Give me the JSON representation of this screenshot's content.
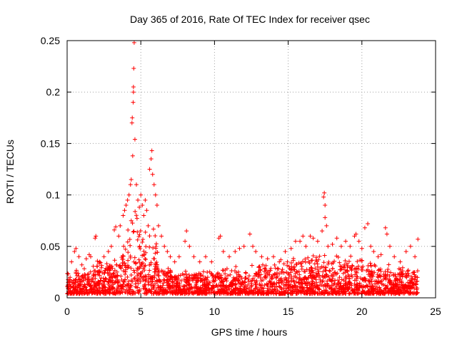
{
  "chart_data": {
    "type": "scatter",
    "title": "Day 365 of 2016, Rate Of TEC Index for receiver qsec",
    "xlabel": "GPS time / hours",
    "ylabel": "ROTI / TECUs",
    "xlim": [
      0,
      25
    ],
    "ylim": [
      0,
      0.25
    ],
    "xticks": [
      0,
      5,
      10,
      15,
      20,
      25
    ],
    "yticks": [
      0,
      0.05,
      0.1,
      0.15,
      0.2,
      0.25
    ],
    "xtick_labels": [
      "0",
      "5",
      "10",
      "15",
      "20",
      "25"
    ],
    "ytick_labels": [
      "0",
      "0.05",
      "0.1",
      "0.15",
      "0.2",
      "0.25"
    ],
    "grid": true,
    "marker": "+",
    "color": "#ff0000",
    "series": [
      {
        "name": "ROTI",
        "points": [
          [
            0.3,
            0.035
          ],
          [
            0.5,
            0.045
          ],
          [
            0.6,
            0.048
          ],
          [
            0.8,
            0.04
          ],
          [
            1.0,
            0.032
          ],
          [
            1.3,
            0.038
          ],
          [
            1.5,
            0.042
          ],
          [
            1.6,
            0.04
          ],
          [
            1.9,
            0.058
          ],
          [
            1.95,
            0.06
          ],
          [
            2.2,
            0.035
          ],
          [
            2.5,
            0.04
          ],
          [
            2.8,
            0.045
          ],
          [
            3.0,
            0.05
          ],
          [
            3.2,
            0.066
          ],
          [
            3.3,
            0.069
          ],
          [
            3.5,
            0.06
          ],
          [
            3.6,
            0.07
          ],
          [
            3.8,
            0.08
          ],
          [
            3.9,
            0.085
          ],
          [
            4.0,
            0.09
          ],
          [
            4.1,
            0.095
          ],
          [
            4.2,
            0.1
          ],
          [
            4.3,
            0.11
          ],
          [
            4.35,
            0.115
          ],
          [
            4.4,
            0.17
          ],
          [
            4.42,
            0.175
          ],
          [
            4.45,
            0.138
          ],
          [
            4.48,
            0.19
          ],
          [
            4.5,
            0.2
          ],
          [
            4.5,
            0.205
          ],
          [
            4.52,
            0.223
          ],
          [
            4.55,
            0.248
          ],
          [
            4.6,
            0.154
          ],
          [
            4.7,
            0.11
          ],
          [
            4.8,
            0.095
          ],
          [
            4.9,
            0.088
          ],
          [
            5.0,
            0.1
          ],
          [
            5.1,
            0.09
          ],
          [
            5.2,
            0.08
          ],
          [
            5.3,
            0.095
          ],
          [
            5.4,
            0.085
          ],
          [
            5.5,
            0.07
          ],
          [
            5.6,
            0.125
          ],
          [
            5.7,
            0.135
          ],
          [
            5.75,
            0.143
          ],
          [
            5.8,
            0.12
          ],
          [
            5.9,
            0.11
          ],
          [
            6.0,
            0.1
          ],
          [
            6.1,
            0.09
          ],
          [
            6.2,
            0.07
          ],
          [
            6.4,
            0.06
          ],
          [
            6.6,
            0.05
          ],
          [
            6.8,
            0.045
          ],
          [
            7.0,
            0.04
          ],
          [
            7.3,
            0.035
          ],
          [
            7.6,
            0.04
          ],
          [
            8.0,
            0.055
          ],
          [
            8.1,
            0.065
          ],
          [
            8.3,
            0.05
          ],
          [
            8.6,
            0.04
          ],
          [
            9.0,
            0.035
          ],
          [
            9.4,
            0.04
          ],
          [
            9.8,
            0.035
          ],
          [
            10.3,
            0.058
          ],
          [
            10.4,
            0.06
          ],
          [
            10.6,
            0.045
          ],
          [
            11.0,
            0.04
          ],
          [
            11.4,
            0.045
          ],
          [
            11.7,
            0.048
          ],
          [
            12.0,
            0.05
          ],
          [
            12.4,
            0.062
          ],
          [
            12.6,
            0.05
          ],
          [
            12.8,
            0.045
          ],
          [
            13.2,
            0.04
          ],
          [
            13.6,
            0.038
          ],
          [
            14.0,
            0.04
          ],
          [
            14.4,
            0.035
          ],
          [
            14.8,
            0.045
          ],
          [
            15.2,
            0.048
          ],
          [
            15.5,
            0.055
          ],
          [
            15.8,
            0.055
          ],
          [
            16.0,
            0.06
          ],
          [
            16.2,
            0.05
          ],
          [
            16.5,
            0.06
          ],
          [
            16.7,
            0.058
          ],
          [
            17.0,
            0.055
          ],
          [
            17.3,
            0.065
          ],
          [
            17.4,
            0.098
          ],
          [
            17.45,
            0.102
          ],
          [
            17.5,
            0.09
          ],
          [
            17.5,
            0.078
          ],
          [
            17.6,
            0.07
          ],
          [
            17.7,
            0.05
          ],
          [
            18.0,
            0.052
          ],
          [
            18.3,
            0.058
          ],
          [
            18.6,
            0.05
          ],
          [
            18.9,
            0.055
          ],
          [
            19.2,
            0.05
          ],
          [
            19.5,
            0.06
          ],
          [
            19.6,
            0.062
          ],
          [
            19.8,
            0.055
          ],
          [
            20.0,
            0.048
          ],
          [
            20.2,
            0.068
          ],
          [
            20.4,
            0.072
          ],
          [
            20.6,
            0.05
          ],
          [
            20.8,
            0.045
          ],
          [
            21.1,
            0.04
          ],
          [
            21.3,
            0.042
          ],
          [
            21.6,
            0.068
          ],
          [
            21.7,
            0.062
          ],
          [
            21.9,
            0.05
          ],
          [
            22.2,
            0.04
          ],
          [
            22.6,
            0.035
          ],
          [
            23.0,
            0.045
          ],
          [
            23.3,
            0.05
          ],
          [
            23.6,
            0.04
          ],
          [
            23.8,
            0.057
          ]
        ]
      }
    ]
  }
}
